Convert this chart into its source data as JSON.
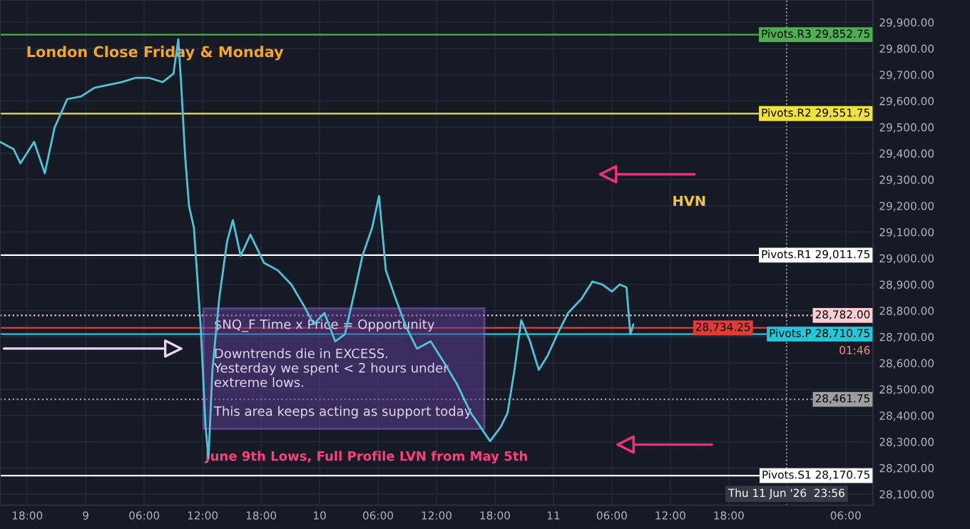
{
  "chart_data": {
    "type": "line",
    "x": [
      "2026-06-08T15:12",
      "2026-06-08T16:36",
      "2026-06-08T17:18",
      "2026-06-08T18:42",
      "2026-06-08T19:48",
      "2026-06-08T20:48",
      "2026-06-08T22:06",
      "2026-06-08T23:30",
      "2026-06-09T00:54",
      "2026-06-09T02:18",
      "2026-06-09T03:42",
      "2026-06-09T05:06",
      "2026-06-09T06:30",
      "2026-06-09T07:54",
      "2026-06-09T09:00",
      "2026-06-09T09:30",
      "2026-06-09T09:48",
      "2026-06-09T10:12",
      "2026-06-09T10:36",
      "2026-06-09T11:06",
      "2026-06-09T11:48",
      "2026-06-09T12:18",
      "2026-06-09T12:36",
      "2026-06-09T13:00",
      "2026-06-09T13:42",
      "2026-06-09T14:30",
      "2026-06-09T15:06",
      "2026-06-09T15:54",
      "2026-06-09T16:54",
      "2026-06-09T18:18",
      "2026-06-09T19:42",
      "2026-06-09T21:06",
      "2026-06-09T22:24",
      "2026-06-09T23:24",
      "2026-06-10T00:30",
      "2026-06-10T01:36",
      "2026-06-10T02:36",
      "2026-06-10T03:36",
      "2026-06-10T04:24",
      "2026-06-10T05:24",
      "2026-06-10T06:06",
      "2026-06-10T06:48",
      "2026-06-10T07:48",
      "2026-06-10T08:54",
      "2026-06-10T10:00",
      "2026-06-10T11:24",
      "2026-06-10T12:48",
      "2026-06-10T14:06",
      "2026-06-10T15:30",
      "2026-06-10T16:30",
      "2026-06-10T17:30",
      "2026-06-10T18:36",
      "2026-06-10T19:18",
      "2026-06-10T20:00",
      "2026-06-10T20:42",
      "2026-06-10T21:36",
      "2026-06-10T22:30",
      "2026-06-10T23:24",
      "2026-06-11T00:24",
      "2026-06-11T01:30",
      "2026-06-11T02:54",
      "2026-06-11T04:00",
      "2026-06-11T05:00",
      "2026-06-11T06:00",
      "2026-06-11T06:48",
      "2026-06-11T07:30",
      "2026-06-11T07:54",
      "2026-06-11T08:12"
    ],
    "series": [
      {
        "color": "#4fc3d9",
        "values": [
          29444,
          29416,
          29362,
          29444,
          29324,
          29498,
          29607,
          29617,
          29650,
          29661,
          29672,
          29688,
          29688,
          29672,
          29704,
          29835,
          29661,
          29389,
          29199,
          29117,
          28737,
          28357,
          28237,
          28574,
          28846,
          29063,
          29145,
          29009,
          29090,
          28982,
          28954,
          28900,
          28818,
          28748,
          28791,
          28683,
          28710,
          28873,
          29009,
          29117,
          29237,
          28954,
          28846,
          28737,
          28655,
          28683,
          28601,
          28520,
          28411,
          28357,
          28302,
          28357,
          28411,
          28574,
          28764,
          28683,
          28574,
          28628,
          28710,
          28791,
          28846,
          28911,
          28900,
          28873,
          28900,
          28889,
          28710,
          28748
        ]
      }
    ],
    "xlim": [
      "2026-06-08T15:12",
      "2026-06-12T08:48"
    ],
    "xticks": [
      {
        "value": "2026-06-08T18:00",
        "label": "18:00"
      },
      {
        "value": "2026-06-09T00:00",
        "label": "9"
      },
      {
        "value": "2026-06-09T06:00",
        "label": "06:00"
      },
      {
        "value": "2026-06-09T12:00",
        "label": "12:00"
      },
      {
        "value": "2026-06-09T18:00",
        "label": "18:00"
      },
      {
        "value": "2026-06-10T00:00",
        "label": "10"
      },
      {
        "value": "2026-06-10T06:00",
        "label": "06:00"
      },
      {
        "value": "2026-06-10T12:00",
        "label": "12:00"
      },
      {
        "value": "2026-06-10T18:00",
        "label": "18:00"
      },
      {
        "value": "2026-06-11T00:00",
        "label": "11"
      },
      {
        "value": "2026-06-11T06:00",
        "label": "06:00"
      },
      {
        "value": "2026-06-11T12:00",
        "label": "12:00"
      },
      {
        "value": "2026-06-11T18:00",
        "label": "18:00"
      },
      {
        "value": "2026-06-12T06:00",
        "label": "06:00"
      }
    ],
    "ylim": [
      28058,
      29985
    ],
    "yticks": [
      {
        "value": 28100,
        "label": "28,100.00"
      },
      {
        "value": 28200,
        "label": "28,200.00"
      },
      {
        "value": 28300,
        "label": "28,300.00"
      },
      {
        "value": 28400,
        "label": "28,400.00"
      },
      {
        "value": 28500,
        "label": "28,500.00"
      },
      {
        "value": 28600,
        "label": "28,600.00"
      },
      {
        "value": 28700,
        "label": "28,700.00"
      },
      {
        "value": 28800,
        "label": "28,800.00"
      },
      {
        "value": 28900,
        "label": "28,900.00"
      },
      {
        "value": 29000,
        "label": "29,000.00"
      },
      {
        "value": 29100,
        "label": "29,100.00"
      },
      {
        "value": 29200,
        "label": "29,200.00"
      },
      {
        "value": 29300,
        "label": "29,300.00"
      },
      {
        "value": 29400,
        "label": "29,400.00"
      },
      {
        "value": 29500,
        "label": "29,500.00"
      },
      {
        "value": 29600,
        "label": "29,600.00"
      },
      {
        "value": 29700,
        "label": "29,700.00"
      },
      {
        "value": 29800,
        "label": "29,800.00"
      },
      {
        "value": 29900,
        "label": "29,900.00"
      }
    ],
    "grid": true,
    "line_style": "solid",
    "ref_lines": [
      {
        "axis": "y",
        "value": 29852.75,
        "label": "Pivots.R3 29,852.75",
        "color": "#4caf50",
        "line_style": "solid"
      },
      {
        "axis": "y",
        "value": 29551.75,
        "label": "Pivots.R2 29,551.75",
        "color": "#f0e040",
        "line_style": "solid"
      },
      {
        "axis": "y",
        "value": 29011.75,
        "label": "Pivots.R1 29,011.75",
        "color": "#ffffff",
        "line_style": "solid"
      },
      {
        "axis": "y",
        "value": 28782.0,
        "label": "28,782.00",
        "color": "#ffcdd2",
        "line_style": "dotted"
      },
      {
        "axis": "y",
        "value": 28734.25,
        "label": "28,734.25",
        "color": "#e53935",
        "line_style": "solid"
      },
      {
        "axis": "y",
        "value": 28710.75,
        "label": "Pivots.P 28,710.75",
        "color": "#26c6da",
        "line_style": "solid"
      },
      {
        "axis": "y",
        "value": 28461.75,
        "label": "28,461.75",
        "color": "#9e9e9e",
        "line_style": "dotted"
      },
      {
        "axis": "y",
        "value": 28170.75,
        "label": "Pivots.S1 28,170.75",
        "color": "#ffffff",
        "line_style": "solid"
      },
      {
        "axis": "x",
        "value": "2026-06-11T23:56",
        "label": "Thu 11 Jun '26  23:56",
        "color": "#9e9e9e",
        "line_style": "dotted"
      }
    ],
    "annotations": [
      "London Close Friday & Monday",
      "HVN",
      "$NQ_F Time x Price = Opportunity\n\nDowntrends die in EXCESS.\nYesterday we spent < 2 hours under\nextreme lows.\n\nThis area keeps acting as support today.",
      "June 9th Lows, Full Profile LVN from May 5th",
      "01:46"
    ]
  }
}
